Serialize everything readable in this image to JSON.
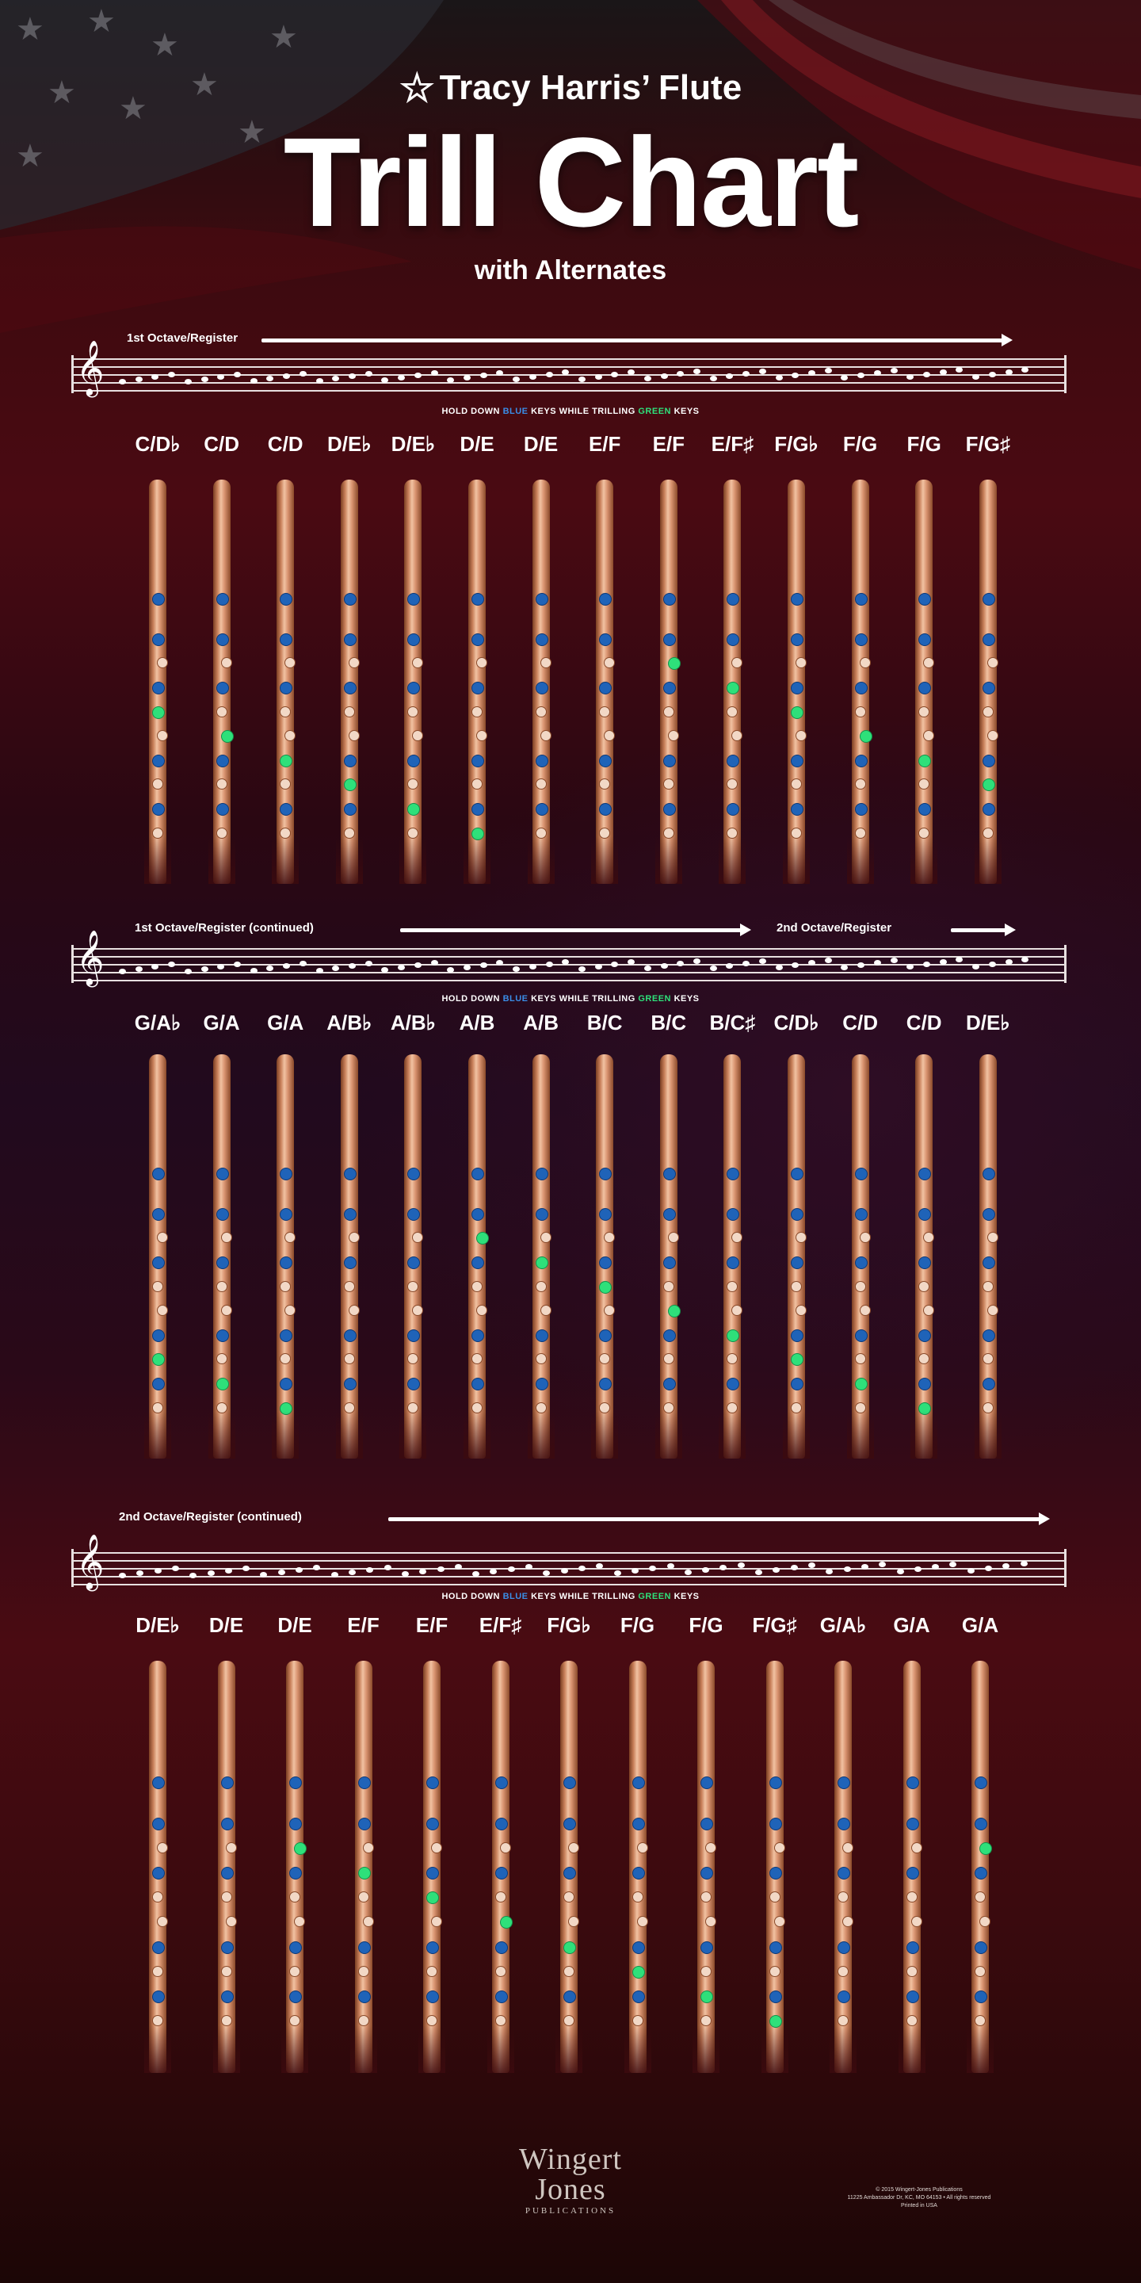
{
  "header": {
    "subtitle_top": "Tracy Harris’ Flute",
    "title": "Trill Chart",
    "subtitle_bottom": "with Alternates"
  },
  "hold_text": {
    "prefix": "HOLD DOWN",
    "blue_word": "BLUE",
    "middle": "KEYS WHILE TRILLING",
    "green_word": "GREEN",
    "suffix": "KEYS"
  },
  "colors": {
    "blue_key": "#1f63b8",
    "green_key": "#2ee07a",
    "flute_body": "#d99370"
  },
  "sections": [
    {
      "register_labels": [
        "1st Octave/Register"
      ],
      "trills": [
        "C/D♭",
        "C/D",
        "C/D",
        "D/E♭",
        "D/E♭",
        "D/E",
        "D/E",
        "E/F",
        "E/F",
        "E/F♯",
        "F/G♭",
        "F/G",
        "F/G",
        "F/G♯"
      ]
    },
    {
      "register_labels": [
        "1st Octave/Register (continued)",
        "2nd Octave/Register"
      ],
      "trills": [
        "G/A♭",
        "G/A",
        "G/A",
        "A/B♭",
        "A/B♭",
        "A/B",
        "A/B",
        "B/C",
        "B/C",
        "B/C♯",
        "C/D♭",
        "C/D",
        "C/D",
        "D/E♭"
      ]
    },
    {
      "register_labels": [
        "2nd Octave/Register (continued)"
      ],
      "trills": [
        "D/E♭",
        "D/E",
        "D/E",
        "E/F",
        "E/F",
        "E/F♯",
        "F/G♭",
        "F/G",
        "F/G",
        "F/G♯",
        "G/A♭",
        "G/A",
        "G/A"
      ]
    }
  ],
  "footer": {
    "logo_line1": "Wingert",
    "logo_line2": "Jones",
    "logo_small": "PUBLICATIONS",
    "copyright_lines": [
      "© 2015 Wingert-Jones Publications",
      "11225 Ambassador Dr, KC, MO 64153 • All rights reserved",
      "Printed in USA"
    ]
  }
}
